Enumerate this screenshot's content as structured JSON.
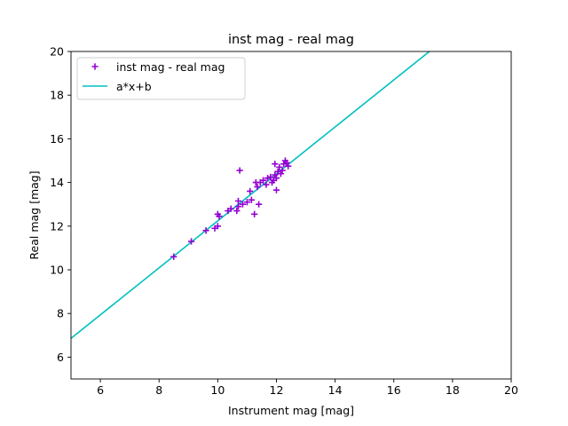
{
  "chart_data": {
    "type": "scatter",
    "title": "inst mag - real mag",
    "xlabel": "Instrument mag [mag]",
    "ylabel": "Real mag [mag]",
    "xlim": [
      5,
      20
    ],
    "ylim": [
      5,
      20
    ],
    "xticks": [
      6,
      8,
      10,
      12,
      14,
      16,
      18,
      20
    ],
    "yticks": [
      6,
      8,
      10,
      12,
      14,
      16,
      18,
      20
    ],
    "grid": false,
    "legend_position": "top-left",
    "series": [
      {
        "name": "inst mag - real mag",
        "kind": "scatter",
        "marker": "plus",
        "color": "#9400d3",
        "points": [
          [
            8.5,
            10.6
          ],
          [
            9.1,
            11.3
          ],
          [
            9.6,
            11.8
          ],
          [
            9.9,
            11.9
          ],
          [
            10.0,
            12.0
          ],
          [
            10.0,
            12.55
          ],
          [
            10.05,
            12.45
          ],
          [
            10.35,
            12.7
          ],
          [
            10.45,
            12.8
          ],
          [
            10.65,
            12.7
          ],
          [
            10.7,
            12.9
          ],
          [
            10.7,
            13.15
          ],
          [
            10.75,
            14.55
          ],
          [
            10.85,
            13.0
          ],
          [
            11.0,
            13.1
          ],
          [
            11.1,
            13.6
          ],
          [
            11.15,
            13.2
          ],
          [
            11.25,
            12.55
          ],
          [
            11.3,
            14.0
          ],
          [
            11.35,
            13.8
          ],
          [
            11.4,
            13.0
          ],
          [
            11.45,
            14.0
          ],
          [
            11.55,
            14.1
          ],
          [
            11.65,
            13.9
          ],
          [
            11.7,
            14.2
          ],
          [
            11.8,
            14.25
          ],
          [
            11.85,
            14.0
          ],
          [
            11.9,
            14.1
          ],
          [
            11.95,
            14.35
          ],
          [
            11.95,
            14.85
          ],
          [
            12.0,
            13.65
          ],
          [
            12.0,
            14.2
          ],
          [
            12.05,
            14.5
          ],
          [
            12.1,
            14.7
          ],
          [
            12.15,
            14.4
          ],
          [
            12.2,
            14.55
          ],
          [
            12.25,
            14.85
          ],
          [
            12.3,
            15.0
          ],
          [
            12.35,
            14.9
          ],
          [
            12.4,
            14.75
          ]
        ]
      },
      {
        "name": "a*x+b",
        "kind": "line",
        "color": "#00bfbf",
        "slope": 1.076,
        "intercept": 1.48
      }
    ]
  }
}
